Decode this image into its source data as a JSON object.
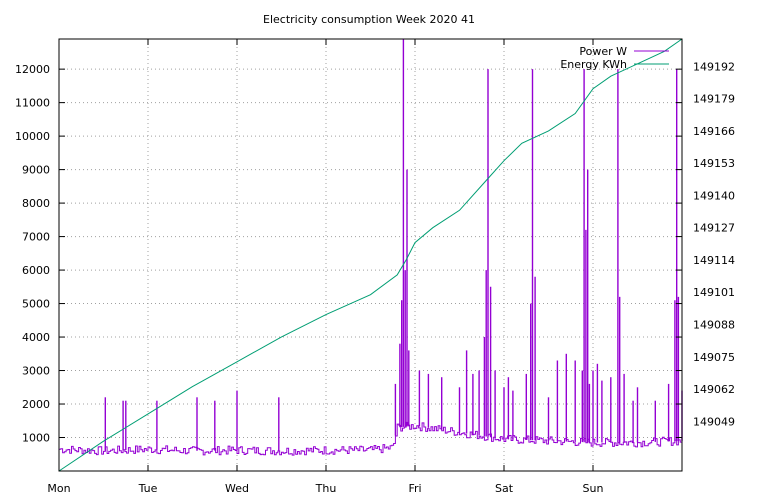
{
  "chart_data": {
    "type": "line",
    "title": "Electricity consumption Week 2020 41",
    "xlabel": "",
    "ylabel": "",
    "x_ticks": [
      "Mon",
      "Tue",
      "Wed",
      "Thu",
      "Fri",
      "Sat",
      "Sun"
    ],
    "xlim": [
      0,
      7
    ],
    "ylim": [
      0,
      12900
    ],
    "y_ticks": [
      1000,
      2000,
      3000,
      4000,
      5000,
      6000,
      7000,
      8000,
      9000,
      10000,
      11000,
      12000
    ],
    "y2lim": [
      149029,
      149203
    ],
    "y2_ticks": [
      "149049",
      "149062",
      "149075",
      "149088",
      "149101",
      "149114",
      "149127",
      "149140",
      "149153",
      "149166",
      "149179",
      "149192"
    ],
    "grid": true,
    "legend_position": "top-right",
    "series": [
      {
        "name": "Power W",
        "axis": "left",
        "color": "#9400d3",
        "baseline": [
          [
            0,
            650
          ],
          [
            0.5,
            600
          ],
          [
            1,
            650
          ],
          [
            1.5,
            600
          ],
          [
            2,
            620
          ],
          [
            2.5,
            600
          ],
          [
            3,
            620
          ],
          [
            3.5,
            620
          ],
          [
            3.75,
            700
          ],
          [
            3.8,
            1300
          ],
          [
            4,
            1350
          ],
          [
            4.5,
            1150
          ],
          [
            5,
            950
          ],
          [
            5.5,
            900
          ],
          [
            6,
            850
          ],
          [
            6.5,
            850
          ],
          [
            7,
            900
          ]
        ],
        "spikes": [
          [
            0.52,
            2200
          ],
          [
            0.72,
            2100
          ],
          [
            0.75,
            2100
          ],
          [
            1.1,
            2100
          ],
          [
            1.55,
            2200
          ],
          [
            1.75,
            2100
          ],
          [
            2.0,
            2400
          ],
          [
            2.47,
            2200
          ],
          [
            3.78,
            2600
          ],
          [
            3.83,
            3800
          ],
          [
            3.85,
            5100
          ],
          [
            3.87,
            12900
          ],
          [
            3.89,
            6000
          ],
          [
            3.91,
            9000
          ],
          [
            3.93,
            3600
          ],
          [
            4.05,
            3000
          ],
          [
            4.15,
            2900
          ],
          [
            4.3,
            2800
          ],
          [
            4.5,
            2500
          ],
          [
            4.58,
            3600
          ],
          [
            4.65,
            2900
          ],
          [
            4.72,
            3000
          ],
          [
            4.78,
            4000
          ],
          [
            4.8,
            6000
          ],
          [
            4.82,
            12000
          ],
          [
            4.85,
            5500
          ],
          [
            4.9,
            3000
          ],
          [
            5.0,
            2500
          ],
          [
            5.05,
            2800
          ],
          [
            5.1,
            2400
          ],
          [
            5.25,
            2900
          ],
          [
            5.3,
            5000
          ],
          [
            5.32,
            12000
          ],
          [
            5.35,
            5800
          ],
          [
            5.5,
            2200
          ],
          [
            5.6,
            3300
          ],
          [
            5.7,
            3500
          ],
          [
            5.8,
            3300
          ],
          [
            5.88,
            3000
          ],
          [
            5.9,
            12000
          ],
          [
            5.92,
            7200
          ],
          [
            5.94,
            9000
          ],
          [
            5.96,
            2600
          ],
          [
            6.0,
            3000
          ],
          [
            6.05,
            3200
          ],
          [
            6.1,
            2700
          ],
          [
            6.2,
            2800
          ],
          [
            6.28,
            12000
          ],
          [
            6.3,
            5200
          ],
          [
            6.35,
            2900
          ],
          [
            6.45,
            2100
          ],
          [
            6.5,
            2500
          ],
          [
            6.7,
            2100
          ],
          [
            6.85,
            2600
          ],
          [
            6.92,
            5100
          ],
          [
            6.94,
            12000
          ],
          [
            6.96,
            5200
          ],
          [
            7.0,
            2400
          ]
        ]
      },
      {
        "name": "Energy KWh",
        "axis": "right",
        "color": "#009e73",
        "points": [
          [
            0,
            149029
          ],
          [
            0.5,
            149041
          ],
          [
            1,
            149052
          ],
          [
            1.5,
            149063
          ],
          [
            2,
            149073
          ],
          [
            2.5,
            149083
          ],
          [
            3,
            149092
          ],
          [
            3.5,
            149100
          ],
          [
            3.8,
            149108
          ],
          [
            3.9,
            149114
          ],
          [
            4,
            149121
          ],
          [
            4.2,
            149127
          ],
          [
            4.5,
            149134
          ],
          [
            4.8,
            149146
          ],
          [
            5,
            149154
          ],
          [
            5.2,
            149161
          ],
          [
            5.5,
            149166
          ],
          [
            5.8,
            149173
          ],
          [
            6,
            149183
          ],
          [
            6.2,
            149188
          ],
          [
            6.5,
            149193
          ],
          [
            6.8,
            149198
          ],
          [
            7,
            149203
          ]
        ]
      }
    ]
  }
}
